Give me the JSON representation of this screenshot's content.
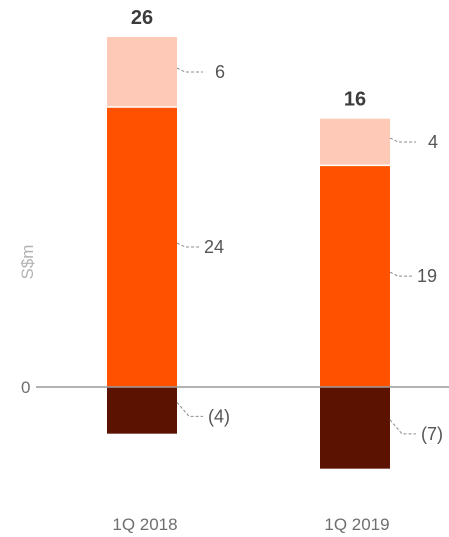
{
  "chart_data": {
    "type": "bar",
    "stacked": true,
    "ylabel": "S$m",
    "ytick_labels": [
      "0"
    ],
    "categories": [
      "1Q 2018",
      "1Q 2019"
    ],
    "totals": [
      26,
      16
    ],
    "total_labels": [
      "26",
      "16"
    ],
    "series": [
      {
        "values": [
          -4,
          -7
        ],
        "labels": [
          "(4)",
          "(7)"
        ],
        "color": "#5c1200"
      },
      {
        "values": [
          24,
          19
        ],
        "labels": [
          "24",
          "19"
        ],
        "color": "#ff5100"
      },
      {
        "values": [
          6,
          4
        ],
        "labels": [
          "6",
          "4"
        ],
        "color": "#ffc9b8"
      }
    ],
    "ylim": [
      -10,
      31
    ],
    "grid": false,
    "legend": "none"
  }
}
